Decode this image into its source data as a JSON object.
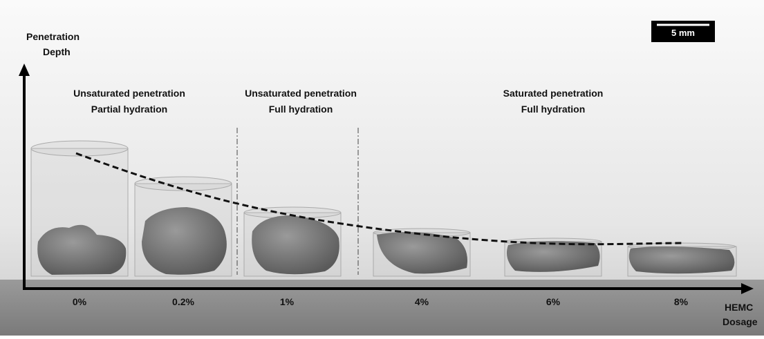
{
  "y_axis_label": [
    "Penetration",
    "Depth"
  ],
  "x_axis_label": [
    "HEMC",
    "Dosage"
  ],
  "scale_bar": "5 mm",
  "regions": [
    {
      "lines": [
        "Unsaturated penetration",
        "Partial hydration"
      ]
    },
    {
      "lines": [
        "Unsaturated penetration",
        "Full hydration"
      ]
    },
    {
      "lines": [
        "Saturated penetration",
        "Full hydration"
      ]
    }
  ],
  "samples": [
    "0%",
    "0.2%",
    "1%",
    "4%",
    "6%",
    "8%"
  ]
}
